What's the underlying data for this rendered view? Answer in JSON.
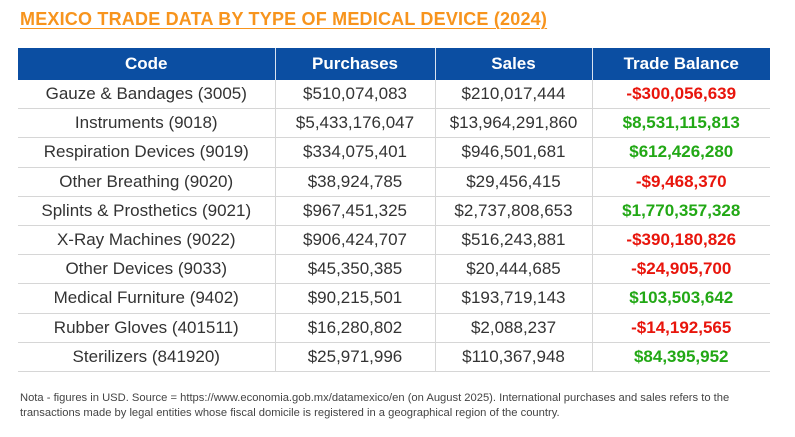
{
  "title": "MEXICO TRADE DATA BY TYPE OF MEDICAL DEVICE (2024)",
  "colors": {
    "title": "#F7941D",
    "header_bg": "#0B4EA2",
    "positive": "#22A815",
    "negative": "#E8150C"
  },
  "table": {
    "headers": [
      "Code",
      "Purchases",
      "Sales",
      "Trade Balance"
    ],
    "rows": [
      {
        "code": "Gauze & Bandages (3005)",
        "purchases": "$510,074,083",
        "sales": "$210,017,444",
        "balance": "-$300,056,639"
      },
      {
        "code": "Instruments (9018)",
        "purchases": "$5,433,176,047",
        "sales": "$13,964,291,860",
        "balance": "$8,531,115,813"
      },
      {
        "code": "Respiration Devices (9019)",
        "purchases": "$334,075,401",
        "sales": "$946,501,681",
        "balance": "$612,426,280"
      },
      {
        "code": "Other Breathing (9020)",
        "purchases": "$38,924,785",
        "sales": "$29,456,415",
        "balance": "-$9,468,370"
      },
      {
        "code": "Splints & Prosthetics (9021)",
        "purchases": "$967,451,325",
        "sales": "$2,737,808,653",
        "balance": "$1,770,357,328"
      },
      {
        "code": "X-Ray Machines (9022)",
        "purchases": "$906,424,707",
        "sales": "$516,243,881",
        "balance": "-$390,180,826"
      },
      {
        "code": "Other Devices (9033)",
        "purchases": "$45,350,385",
        "sales": "$20,444,685",
        "balance": "-$24,905,700"
      },
      {
        "code": "Medical Furniture (9402)",
        "purchases": "$90,215,501",
        "sales": "$193,719,143",
        "balance": "$103,503,642"
      },
      {
        "code": "Rubber Gloves (401511)",
        "purchases": "$16,280,802",
        "sales": "$2,088,237",
        "balance": "-$14,192,565"
      },
      {
        "code": "Sterilizers (841920)",
        "purchases": "$25,971,996",
        "sales": "$110,367,948",
        "balance": "$84,395,952"
      }
    ]
  },
  "note": "Nota - figures in USD. Source = https://www.economia.gob.mx/datamexico/en (on August 2025). International purchases and sales refers to the transactions made by legal entities whose fiscal domicile is registered in a geographical region of the country."
}
